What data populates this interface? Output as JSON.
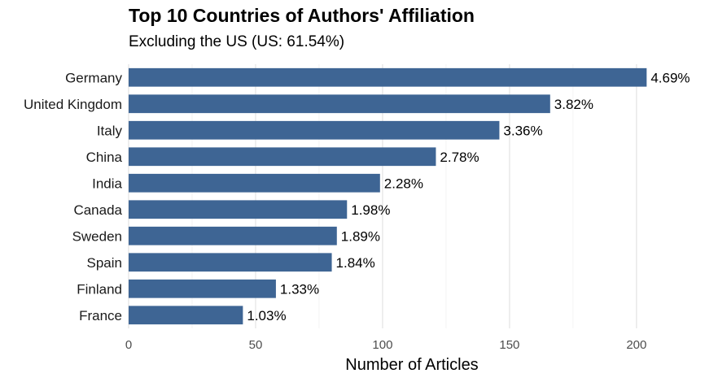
{
  "chart_data": {
    "type": "bar",
    "orientation": "horizontal",
    "title": "Top 10 Countries of Authors' Affiliation",
    "subtitle": "Excluding the US (US: 61.54%)",
    "xlabel": "Number of Articles",
    "ylabel": "",
    "xlim": [
      0,
      218
    ],
    "xticks": [
      0,
      50,
      100,
      150,
      200
    ],
    "categories": [
      "Germany",
      "United Kingdom",
      "Italy",
      "China",
      "India",
      "Canada",
      "Sweden",
      "Spain",
      "Finland",
      "France"
    ],
    "values": [
      204,
      166,
      146,
      121,
      99,
      86,
      82,
      80,
      58,
      45
    ],
    "data_labels": [
      "4.69%",
      "3.82%",
      "3.36%",
      "2.78%",
      "2.28%",
      "1.98%",
      "1.89%",
      "1.84%",
      "1.33%",
      "1.03%"
    ],
    "bar_color": "#3e6594",
    "grid": "vertical",
    "legend": "none"
  }
}
